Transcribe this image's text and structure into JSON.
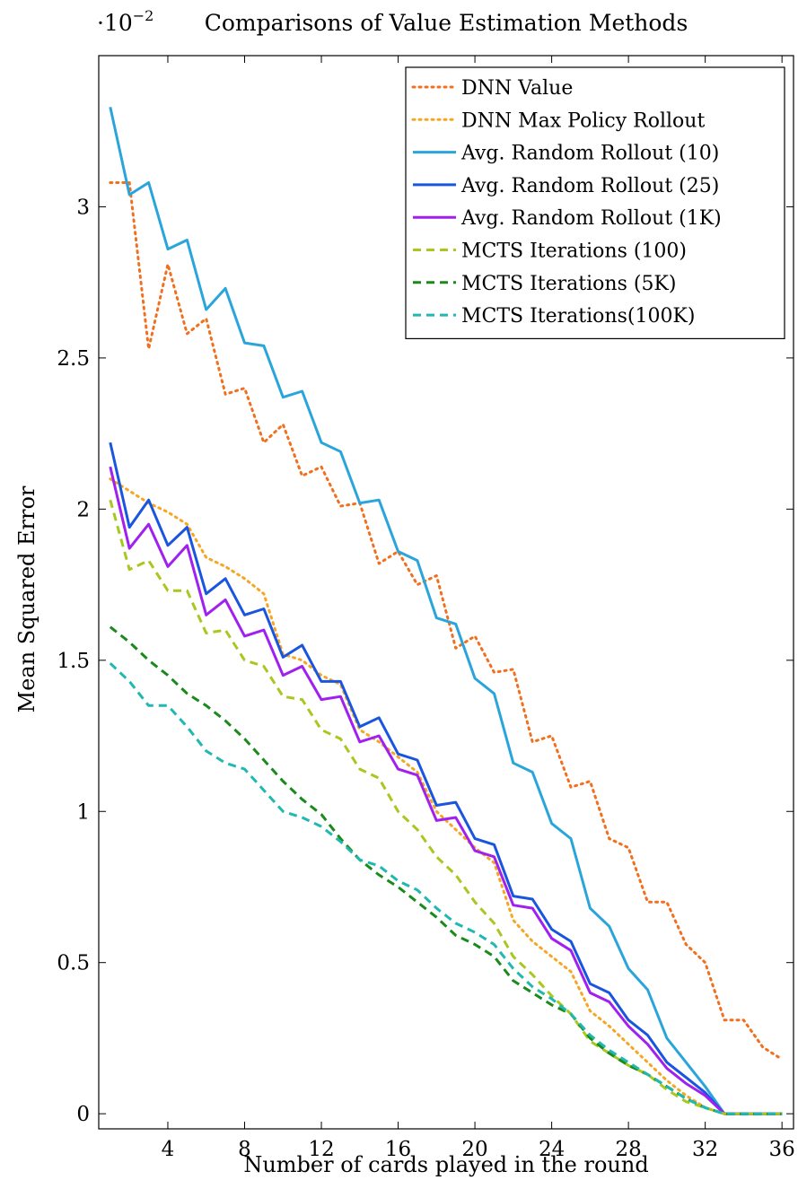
{
  "chart_data": {
    "type": "line",
    "title": "Comparisons of Value Estimation Methods",
    "scale_note": "·10",
    "scale_exp": "−2",
    "xlabel": "Number of cards played in the round",
    "ylabel": "Mean Squared Error",
    "xlim": [
      0.4,
      36.6
    ],
    "ylim": [
      -0.05,
      3.5
    ],
    "xticks": [
      4,
      8,
      12,
      16,
      20,
      24,
      28,
      32,
      36
    ],
    "xtick_labels": [
      "4",
      "8",
      "12",
      "16",
      "20",
      "24",
      "28",
      "32",
      "36"
    ],
    "yticks": [
      0,
      0.5,
      1,
      1.5,
      2,
      2.5,
      3
    ],
    "ytick_labels": [
      "0",
      "0.5",
      "1",
      "1.5",
      "2",
      "2.5",
      "3"
    ],
    "grid": false,
    "legend_position": "top-right",
    "x": [
      1,
      2,
      3,
      4,
      5,
      6,
      7,
      8,
      9,
      10,
      11,
      12,
      13,
      14,
      15,
      16,
      17,
      18,
      19,
      20,
      21,
      22,
      23,
      24,
      25,
      26,
      27,
      28,
      29,
      30,
      31,
      32,
      33,
      34,
      35,
      36
    ],
    "series": [
      {
        "name": "DNN Value",
        "color": "#f07020",
        "style": "dotted",
        "values": [
          3.08,
          3.08,
          2.53,
          2.81,
          2.58,
          2.63,
          2.38,
          2.4,
          2.22,
          2.28,
          2.11,
          2.14,
          2.01,
          2.02,
          1.82,
          1.86,
          1.75,
          1.78,
          1.54,
          1.58,
          1.46,
          1.47,
          1.23,
          1.25,
          1.08,
          1.1,
          0.91,
          0.88,
          0.7,
          0.7,
          0.56,
          0.5,
          0.31,
          0.31,
          0.22,
          0.18
        ]
      },
      {
        "name": "DNN Max Policy Rollout",
        "color": "#f5a623",
        "style": "dotted",
        "values": [
          2.1,
          2.06,
          2.02,
          1.99,
          1.95,
          1.84,
          1.81,
          1.77,
          1.72,
          1.52,
          1.5,
          1.45,
          1.42,
          1.27,
          1.23,
          1.18,
          1.13,
          1.0,
          0.94,
          0.88,
          0.83,
          0.64,
          0.57,
          0.52,
          0.47,
          0.34,
          0.29,
          0.23,
          0.17,
          0.11,
          0.06,
          0.02,
          0,
          0,
          0,
          0
        ]
      },
      {
        "name": "Avg. Random Rollout (10)",
        "color": "#2aa5dc",
        "style": "solid",
        "values": [
          3.33,
          3.04,
          3.08,
          2.86,
          2.89,
          2.66,
          2.73,
          2.55,
          2.54,
          2.37,
          2.39,
          2.22,
          2.19,
          2.02,
          2.03,
          1.86,
          1.83,
          1.64,
          1.62,
          1.44,
          1.39,
          1.16,
          1.13,
          0.96,
          0.91,
          0.68,
          0.62,
          0.48,
          0.41,
          0.25,
          0.17,
          0.09,
          0,
          0,
          0,
          0
        ]
      },
      {
        "name": "Avg. Random Rollout (25)",
        "color": "#1a55e0",
        "style": "solid",
        "values": [
          2.22,
          1.94,
          2.03,
          1.88,
          1.94,
          1.72,
          1.77,
          1.65,
          1.67,
          1.51,
          1.55,
          1.43,
          1.43,
          1.28,
          1.31,
          1.19,
          1.17,
          1.02,
          1.03,
          0.91,
          0.89,
          0.72,
          0.71,
          0.61,
          0.57,
          0.43,
          0.4,
          0.31,
          0.26,
          0.17,
          0.12,
          0.07,
          0,
          0,
          0,
          0
        ]
      },
      {
        "name": "Avg. Random Rollout (1K)",
        "color": "#a020f0",
        "style": "solid",
        "values": [
          2.14,
          1.87,
          1.95,
          1.81,
          1.88,
          1.65,
          1.7,
          1.58,
          1.6,
          1.45,
          1.48,
          1.37,
          1.38,
          1.23,
          1.25,
          1.14,
          1.12,
          0.97,
          0.98,
          0.87,
          0.85,
          0.69,
          0.68,
          0.58,
          0.54,
          0.4,
          0.37,
          0.29,
          0.23,
          0.15,
          0.1,
          0.06,
          0,
          0,
          0,
          0
        ]
      },
      {
        "name": "MCTS Iterations (100)",
        "color": "#a8c820",
        "style": "dashed",
        "values": [
          2.03,
          1.8,
          1.83,
          1.73,
          1.73,
          1.59,
          1.6,
          1.5,
          1.48,
          1.38,
          1.37,
          1.27,
          1.24,
          1.14,
          1.11,
          1.0,
          0.94,
          0.85,
          0.79,
          0.7,
          0.63,
          0.52,
          0.46,
          0.39,
          0.33,
          0.24,
          0.2,
          0.16,
          0.13,
          0.08,
          0.04,
          0.02,
          0,
          0,
          0,
          0
        ]
      },
      {
        "name": "MCTS Iterations (5K)",
        "color": "#1a8a1a",
        "style": "dashed",
        "values": [
          1.61,
          1.56,
          1.5,
          1.45,
          1.39,
          1.35,
          1.3,
          1.24,
          1.17,
          1.1,
          1.04,
          0.99,
          0.91,
          0.84,
          0.79,
          0.75,
          0.7,
          0.65,
          0.59,
          0.56,
          0.52,
          0.44,
          0.4,
          0.36,
          0.33,
          0.25,
          0.2,
          0.16,
          0.13,
          0.09,
          0.05,
          0.02,
          0,
          0,
          0,
          0
        ]
      },
      {
        "name": "MCTS Iterations(100K)",
        "color": "#20b8b0",
        "style": "dashed",
        "values": [
          1.49,
          1.43,
          1.35,
          1.35,
          1.28,
          1.2,
          1.16,
          1.14,
          1.07,
          1.0,
          0.98,
          0.95,
          0.9,
          0.84,
          0.82,
          0.77,
          0.74,
          0.68,
          0.63,
          0.6,
          0.56,
          0.48,
          0.42,
          0.38,
          0.33,
          0.26,
          0.21,
          0.17,
          0.13,
          0.09,
          0.05,
          0.02,
          0,
          0,
          0,
          0
        ]
      }
    ]
  }
}
